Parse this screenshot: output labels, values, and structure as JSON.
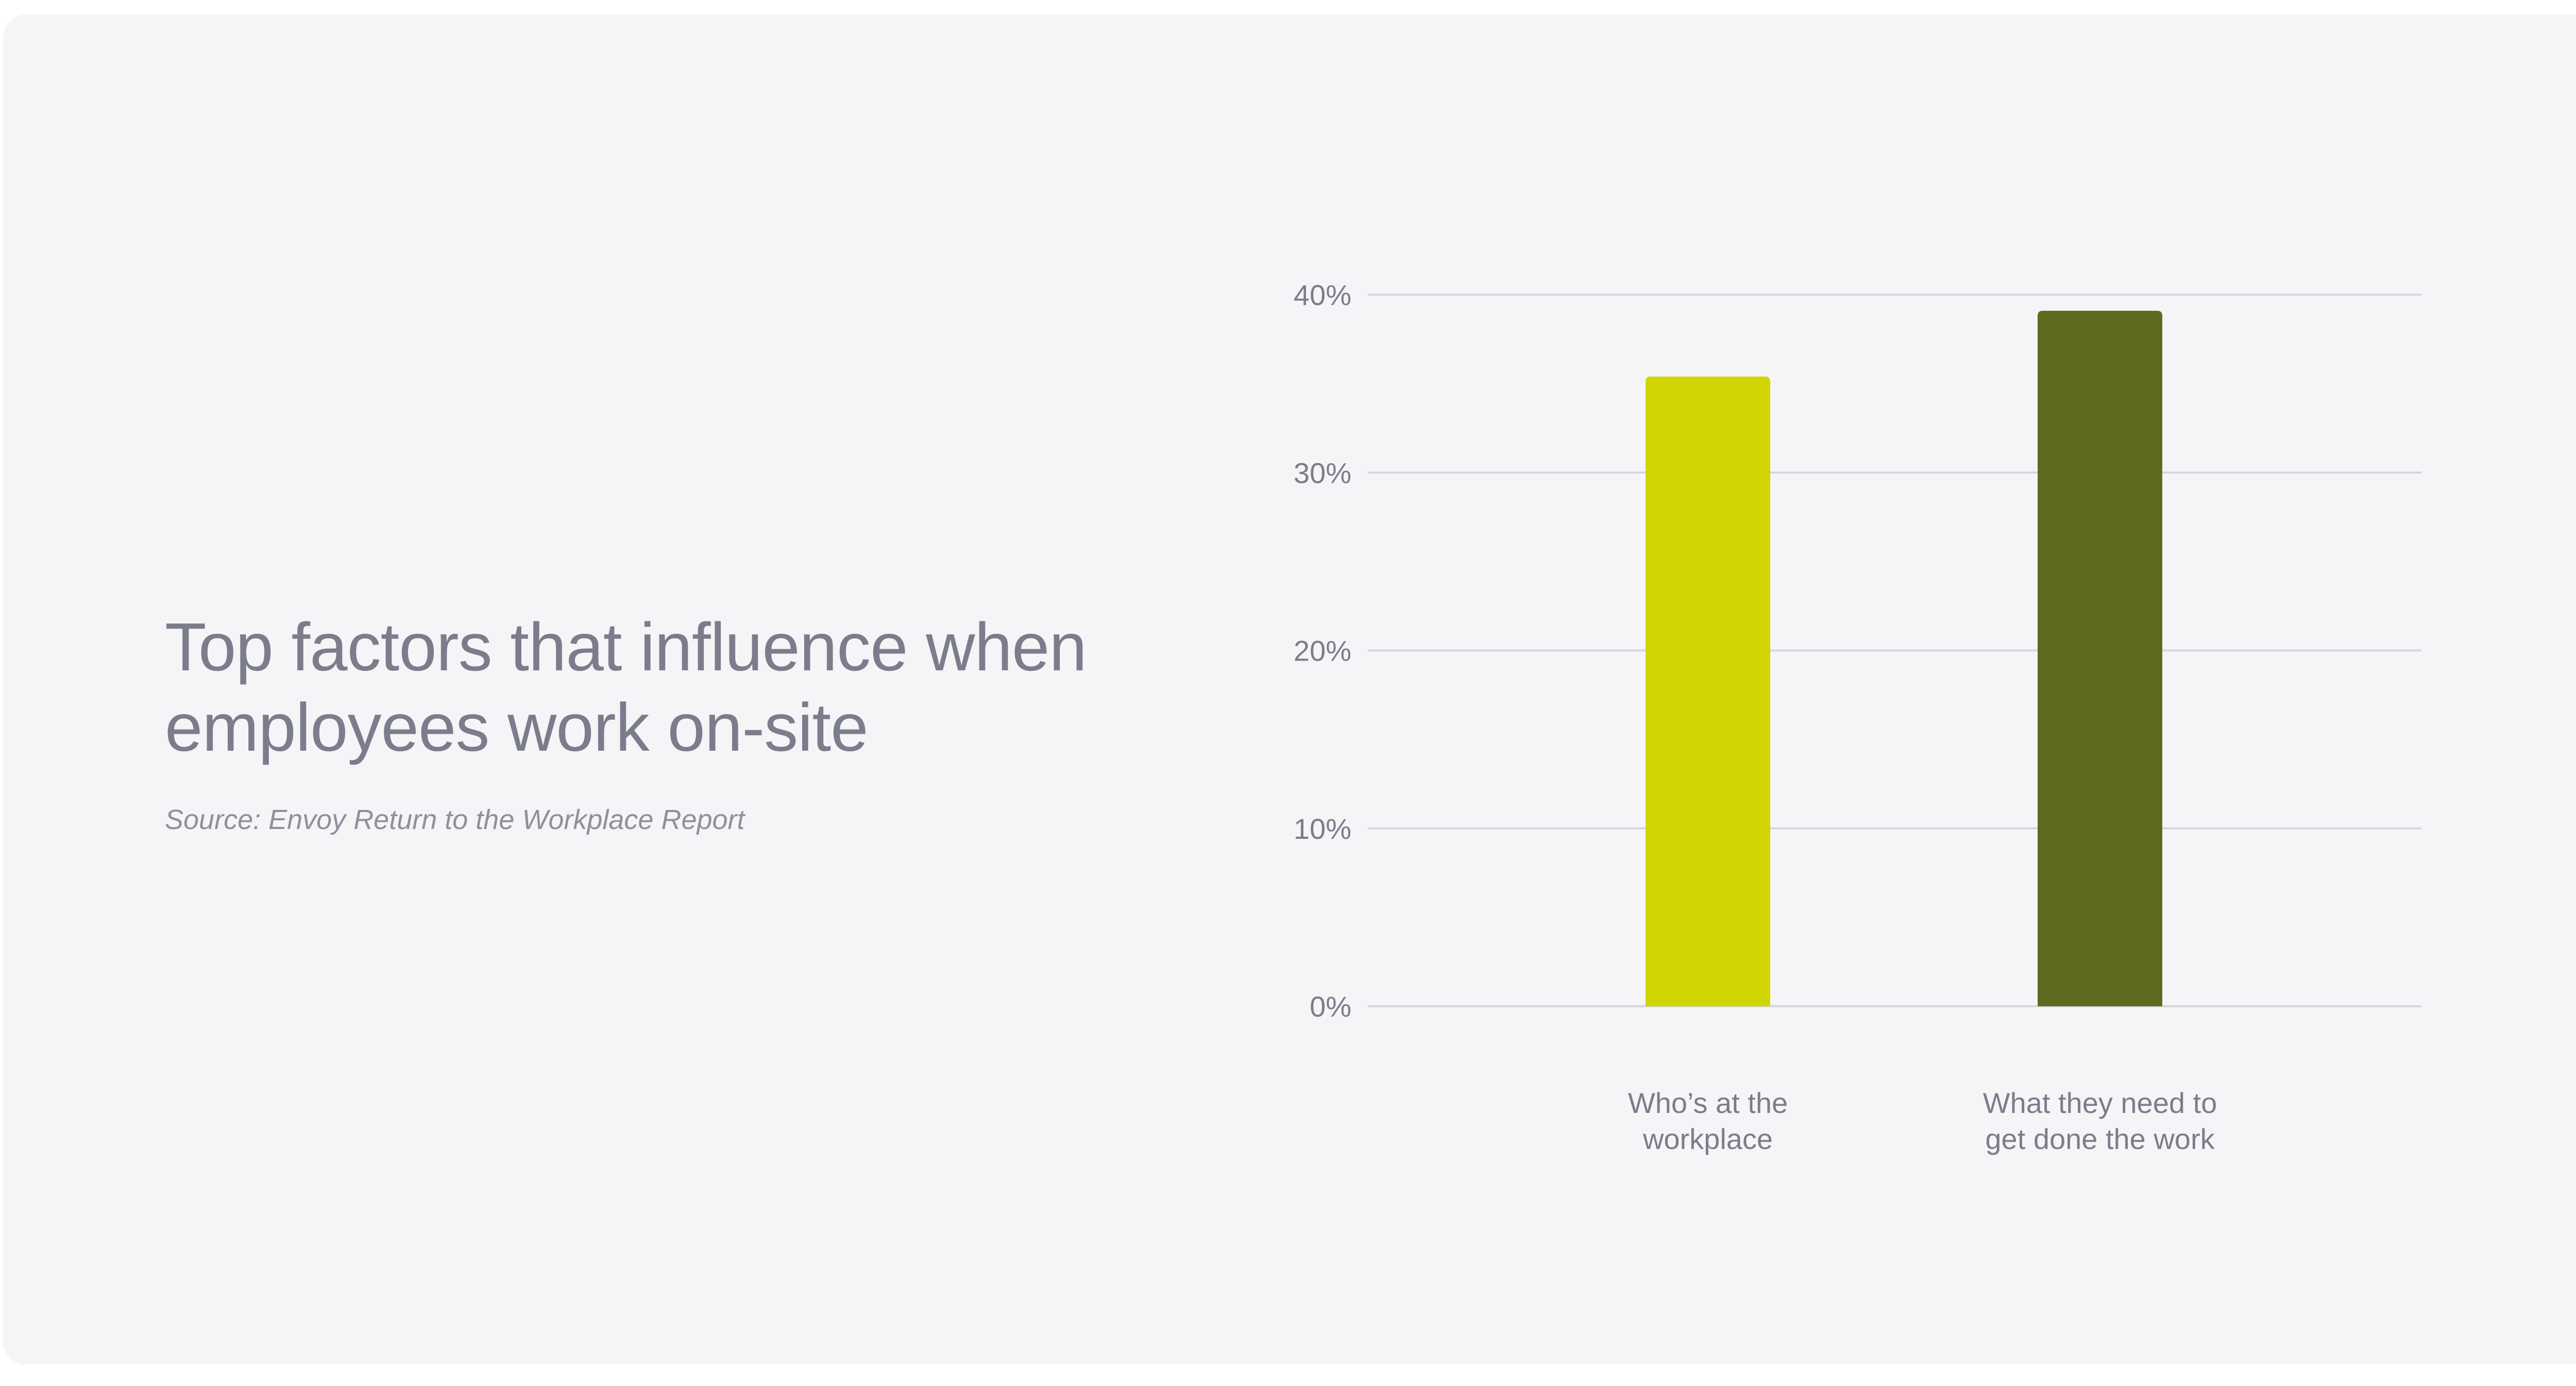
{
  "title": "Top factors that influence when employees work on-site",
  "source": "Source: Envoy Return to the Workplace Report",
  "chart_data": {
    "type": "bar",
    "categories": [
      "Who’s at the workplace",
      "What they need to get done the work"
    ],
    "category_lines": [
      [
        "Who’s at the",
        "workplace"
      ],
      [
        "What they need to",
        "get done the work"
      ]
    ],
    "values": [
      35.4,
      39.1
    ],
    "unit": "%",
    "ylim": [
      0,
      40
    ],
    "yticks": [
      0,
      10,
      20,
      30,
      40
    ],
    "ytick_labels": [
      "0%",
      "10%",
      "20%",
      "30%",
      "40%"
    ],
    "grid": true,
    "colors": [
      "#d0d400",
      "#5d6b1f"
    ]
  }
}
